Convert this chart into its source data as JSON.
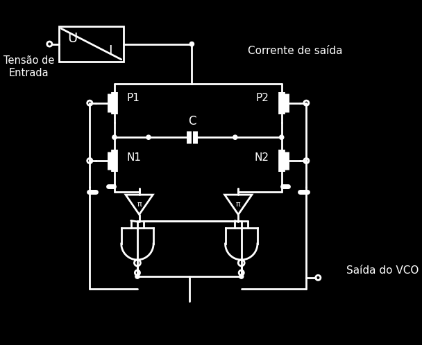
{
  "bg": "#000000",
  "fg": "#ffffff",
  "lw": 2.0,
  "fig_w": 6.08,
  "fig_h": 4.98,
  "dpi": 100,
  "label_tensao": "Tensão de\nEntrada",
  "label_corrente": "Corrente de saída",
  "label_saida": "Saída do VCO",
  "label_P1": "P1",
  "label_P2": "P2",
  "label_N1": "N1",
  "label_N2": "N2",
  "label_C": "C",
  "label_U": "U",
  "label_I": "I"
}
